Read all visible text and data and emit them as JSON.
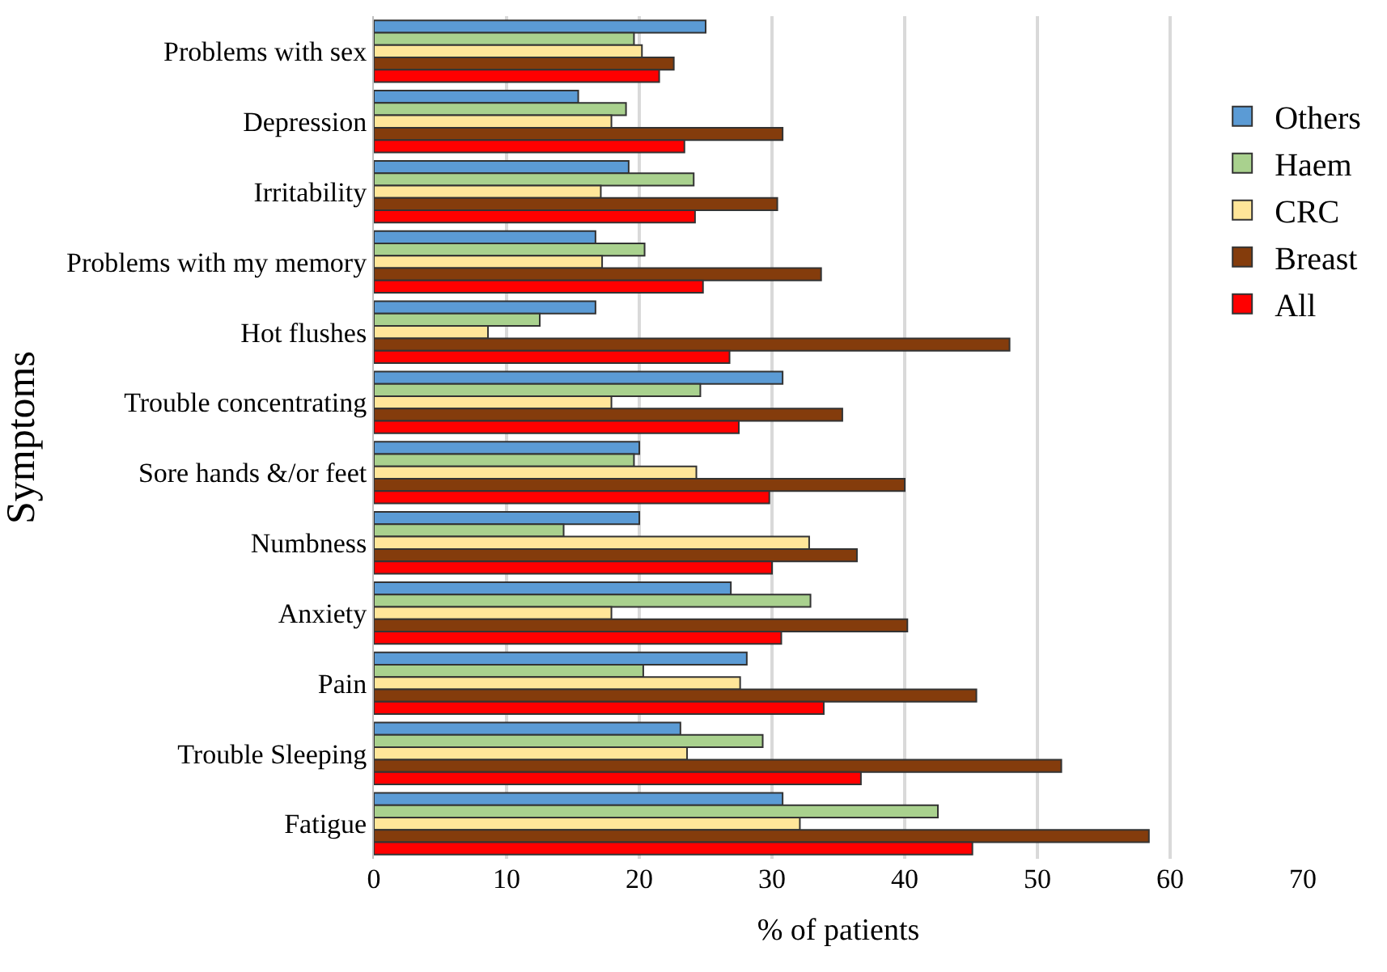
{
  "chart_data": {
    "type": "bar",
    "orientation": "horizontal",
    "xlabel": "% of patients",
    "ylabel": "Symptoms",
    "categories": [
      "Problems with sex",
      "Depression",
      "Irritability",
      "Problems with my memory",
      "Hot flushes",
      "Trouble concentrating",
      "Sore hands &/or feet",
      "Numbness",
      "Anxiety",
      "Pain",
      "Trouble Sleeping",
      "Fatigue"
    ],
    "series": [
      {
        "name": "Others",
        "color": "#5b9bd5",
        "values": [
          25.0,
          15.4,
          19.2,
          16.7,
          16.7,
          30.8,
          20.0,
          20.0,
          26.9,
          28.1,
          23.1,
          30.8
        ]
      },
      {
        "name": "Haem",
        "color": "#a9d18e",
        "values": [
          19.6,
          19.0,
          24.1,
          20.4,
          12.5,
          24.6,
          19.6,
          14.3,
          32.9,
          20.3,
          29.3,
          42.5
        ]
      },
      {
        "name": "CRC",
        "color": "#ffe699",
        "values": [
          20.2,
          17.9,
          17.1,
          17.2,
          8.6,
          17.9,
          24.3,
          32.8,
          17.9,
          27.6,
          23.6,
          32.1
        ]
      },
      {
        "name": "Breast",
        "color": "#843c0c",
        "values": [
          22.6,
          30.8,
          30.4,
          33.7,
          47.9,
          35.3,
          40.0,
          36.4,
          40.2,
          45.4,
          51.8,
          58.4
        ]
      },
      {
        "name": "All",
        "color": "#ff0000",
        "values": [
          21.5,
          23.4,
          24.2,
          24.8,
          26.8,
          27.5,
          29.8,
          30.0,
          30.7,
          33.9,
          36.7,
          45.1
        ]
      }
    ],
    "xlim": [
      0,
      70
    ],
    "xticks": [
      0,
      10,
      20,
      30,
      40,
      50,
      60,
      70
    ],
    "grid": "x",
    "legend": "right"
  }
}
